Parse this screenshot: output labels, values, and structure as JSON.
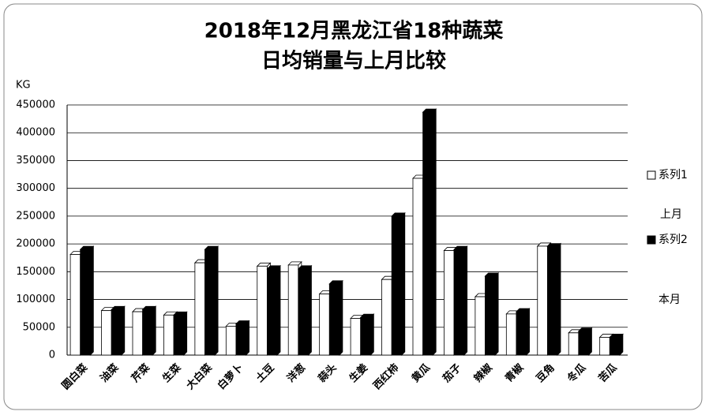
{
  "chart_data": {
    "type": "bar",
    "title": "2018年12月黑龙江省18种蔬菜",
    "subtitle": "日均销量与上月比较",
    "y_label": "KG",
    "annotations": [
      "上月",
      "本月"
    ],
    "categories": [
      "圆白菜",
      "油菜",
      "芹菜",
      "生菜",
      "大白菜",
      "白萝卜",
      "土豆",
      "洋葱",
      "蒜头",
      "生姜",
      "西红柿",
      "黄瓜",
      "茄子",
      "辣椒",
      "青椒",
      "豆角",
      "冬瓜",
      "苦瓜"
    ],
    "series": [
      {
        "name": "系列1",
        "color": "#ffffff",
        "values": [
          181000,
          80000,
          78000,
          72000,
          166000,
          52000,
          160000,
          162000,
          110000,
          66000,
          136000,
          318000,
          188000,
          105000,
          74000,
          196000,
          40000,
          32000
        ]
      },
      {
        "name": "系列2",
        "color": "#000000",
        "values": [
          190000,
          82000,
          82000,
          72000,
          190000,
          56000,
          155000,
          155000,
          128000,
          68000,
          250000,
          437000,
          190000,
          142000,
          78000,
          195000,
          43000,
          32000
        ]
      }
    ],
    "ylim": [
      0,
      450000
    ],
    "yticks": [
      0,
      50000,
      100000,
      150000,
      200000,
      250000,
      300000,
      350000,
      400000,
      450000
    ],
    "grid": true,
    "legend": "right"
  }
}
